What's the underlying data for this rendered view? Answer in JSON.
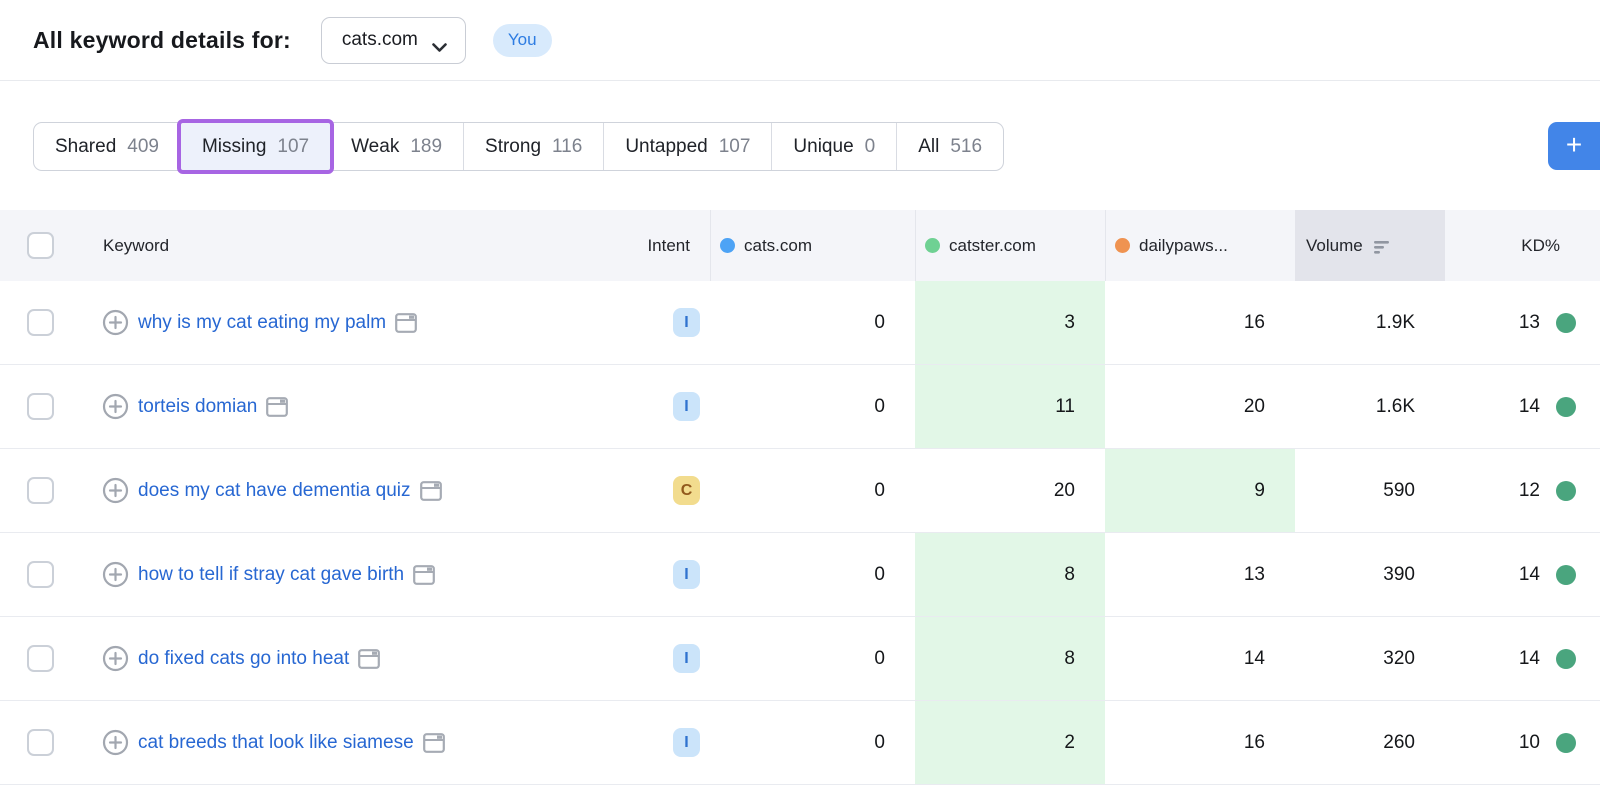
{
  "header": {
    "title": "All keyword details for:",
    "domain_selector": {
      "value": "cats.com"
    },
    "you_badge_label": "You"
  },
  "filters": {
    "tabs": [
      {
        "id": "shared",
        "label": "Shared",
        "count": "409",
        "active": false
      },
      {
        "id": "missing",
        "label": "Missing",
        "count": "107",
        "active": true
      },
      {
        "id": "weak",
        "label": "Weak",
        "count": "189",
        "active": false
      },
      {
        "id": "strong",
        "label": "Strong",
        "count": "116",
        "active": false
      },
      {
        "id": "untapped",
        "label": "Untapped",
        "count": "107",
        "active": false
      },
      {
        "id": "unique",
        "label": "Unique",
        "count": "0",
        "active": false
      },
      {
        "id": "all",
        "label": "All",
        "count": "516",
        "active": false
      }
    ],
    "add_button_label": "+"
  },
  "table": {
    "headers": {
      "keyword": "Keyword",
      "intent": "Intent",
      "volume": "Volume",
      "kd": "KD%"
    },
    "competitors": [
      {
        "name": "cats.com",
        "dot_color": "#4da3f5"
      },
      {
        "name": "catster.com",
        "dot_color": "#6fd193"
      },
      {
        "name": "dailypaws...",
        "dot_color": "#ef9351"
      }
    ],
    "sorted_column": "volume",
    "rows": [
      {
        "keyword": "why is my cat eating my palm",
        "intent": "I",
        "cats": "0",
        "catster": "3",
        "dailypaws": "16",
        "volume": "1.9K",
        "kd": "13",
        "highlight": "catster"
      },
      {
        "keyword": "torteis domian",
        "intent": "I",
        "cats": "0",
        "catster": "11",
        "dailypaws": "20",
        "volume": "1.6K",
        "kd": "14",
        "highlight": "catster"
      },
      {
        "keyword": "does my cat have dementia quiz",
        "intent": "C",
        "cats": "0",
        "catster": "20",
        "dailypaws": "9",
        "volume": "590",
        "kd": "12",
        "highlight": "dailypaws"
      },
      {
        "keyword": "how to tell if stray cat gave birth",
        "intent": "I",
        "cats": "0",
        "catster": "8",
        "dailypaws": "13",
        "volume": "390",
        "kd": "14",
        "highlight": "catster"
      },
      {
        "keyword": "do fixed cats go into heat",
        "intent": "I",
        "cats": "0",
        "catster": "8",
        "dailypaws": "14",
        "volume": "320",
        "kd": "14",
        "highlight": "catster"
      },
      {
        "keyword": "cat breeds that look like siamese",
        "intent": "I",
        "cats": "0",
        "catster": "2",
        "dailypaws": "16",
        "volume": "260",
        "kd": "10",
        "highlight": "catster"
      }
    ],
    "kd_dot_color": "#4aa57e",
    "highlight_color": "#e2f7e7"
  }
}
